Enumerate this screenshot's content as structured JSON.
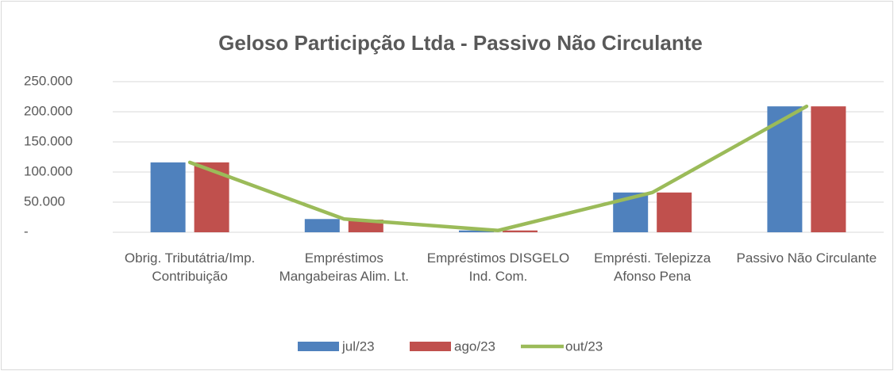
{
  "chart_data": {
    "type": "bar",
    "title": "Geloso Participção Ltda - Passivo Não Circulante",
    "categories": [
      "Obrig. Tributátria/Imp. Contribuição",
      "Empréstimos Mangabeiras Alim. Lt.",
      "Empréstimos DISGELO Ind. Com.",
      "Emprésti. Telepizza Afonso Pena",
      "Passivo Não Circulante"
    ],
    "series": [
      {
        "name": "jul/23",
        "color": "#4f81bd",
        "values": [
          116000,
          22000,
          3000,
          66000,
          209000
        ]
      },
      {
        "name": "ago/23",
        "color": "#c0504d",
        "values": [
          116000,
          21000,
          3000,
          66000,
          209000
        ]
      },
      {
        "name": "out/23",
        "color": "#9bbb59",
        "type": "line",
        "values": [
          116000,
          22000,
          3000,
          66000,
          209000
        ]
      }
    ],
    "ylim": [
      0,
      250000
    ],
    "yticks": [
      {
        "value": 0,
        "label": "-"
      },
      {
        "value": 50000,
        "label": "50.000"
      },
      {
        "value": 100000,
        "label": "100.000"
      },
      {
        "value": 150000,
        "label": "150.000"
      },
      {
        "value": 200000,
        "label": "200.000"
      },
      {
        "value": 250000,
        "label": "250.000"
      }
    ],
    "grid": true,
    "legend": "bottom"
  }
}
